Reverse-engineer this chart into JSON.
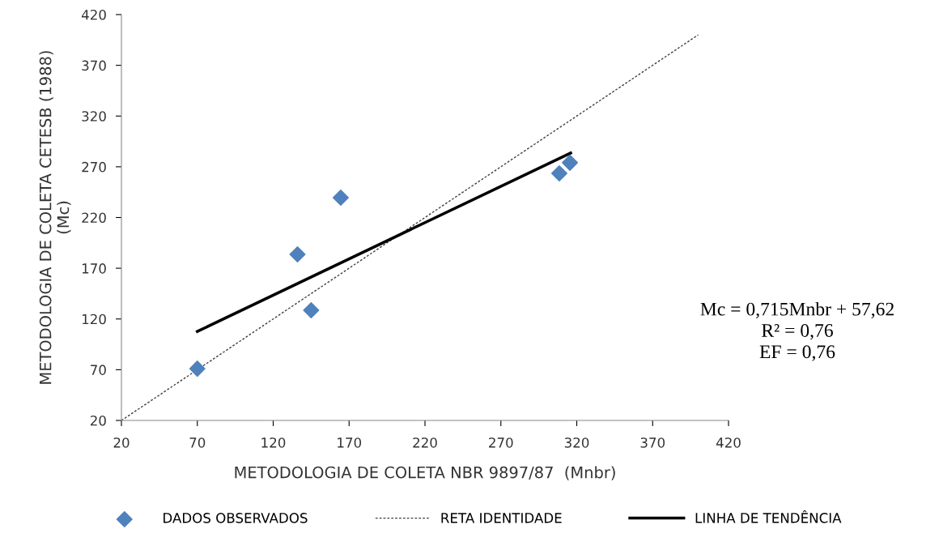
{
  "chart_data": {
    "type": "scatter",
    "xlabel": "METODOLOGIA DE COLETA NBR 9897/87  (Mnbr)",
    "ylabel": "METODOLOGIA DE COLETA CETESB (1988)\n(Mc)",
    "xlim": [
      20,
      420
    ],
    "xticks": [
      20,
      70,
      120,
      170,
      220,
      270,
      320,
      370,
      420
    ],
    "ylim": [
      20,
      420
    ],
    "yticks": [
      20,
      70,
      120,
      170,
      220,
      270,
      320,
      370,
      420
    ],
    "grid": false,
    "legend": "bottom",
    "series": [
      {
        "name": "DADOS OBSERVADOS",
        "marker": "diamond",
        "color": "#4f81bd",
        "x": [
          70,
          136,
          145,
          164.5,
          308.5,
          315.5
        ],
        "values": [
          71,
          183.7,
          128.6,
          239.6,
          263.5,
          274
        ]
      },
      {
        "name": "RETA IDENTIDADE",
        "type": "line",
        "line_style": "dotted",
        "color": "#404040",
        "x": [
          20,
          400
        ],
        "values": [
          20,
          400
        ]
      },
      {
        "name": "LINHA DE TENDÊNCIA",
        "type": "line",
        "line_style": "solid",
        "color": "#000000",
        "x": [
          70,
          316
        ],
        "values": [
          107.7,
          283.6
        ]
      }
    ],
    "annotations": [
      "Mc = 0,715Mnbr + 57,62\nR² = 0,76\nEF = 0,76"
    ]
  }
}
